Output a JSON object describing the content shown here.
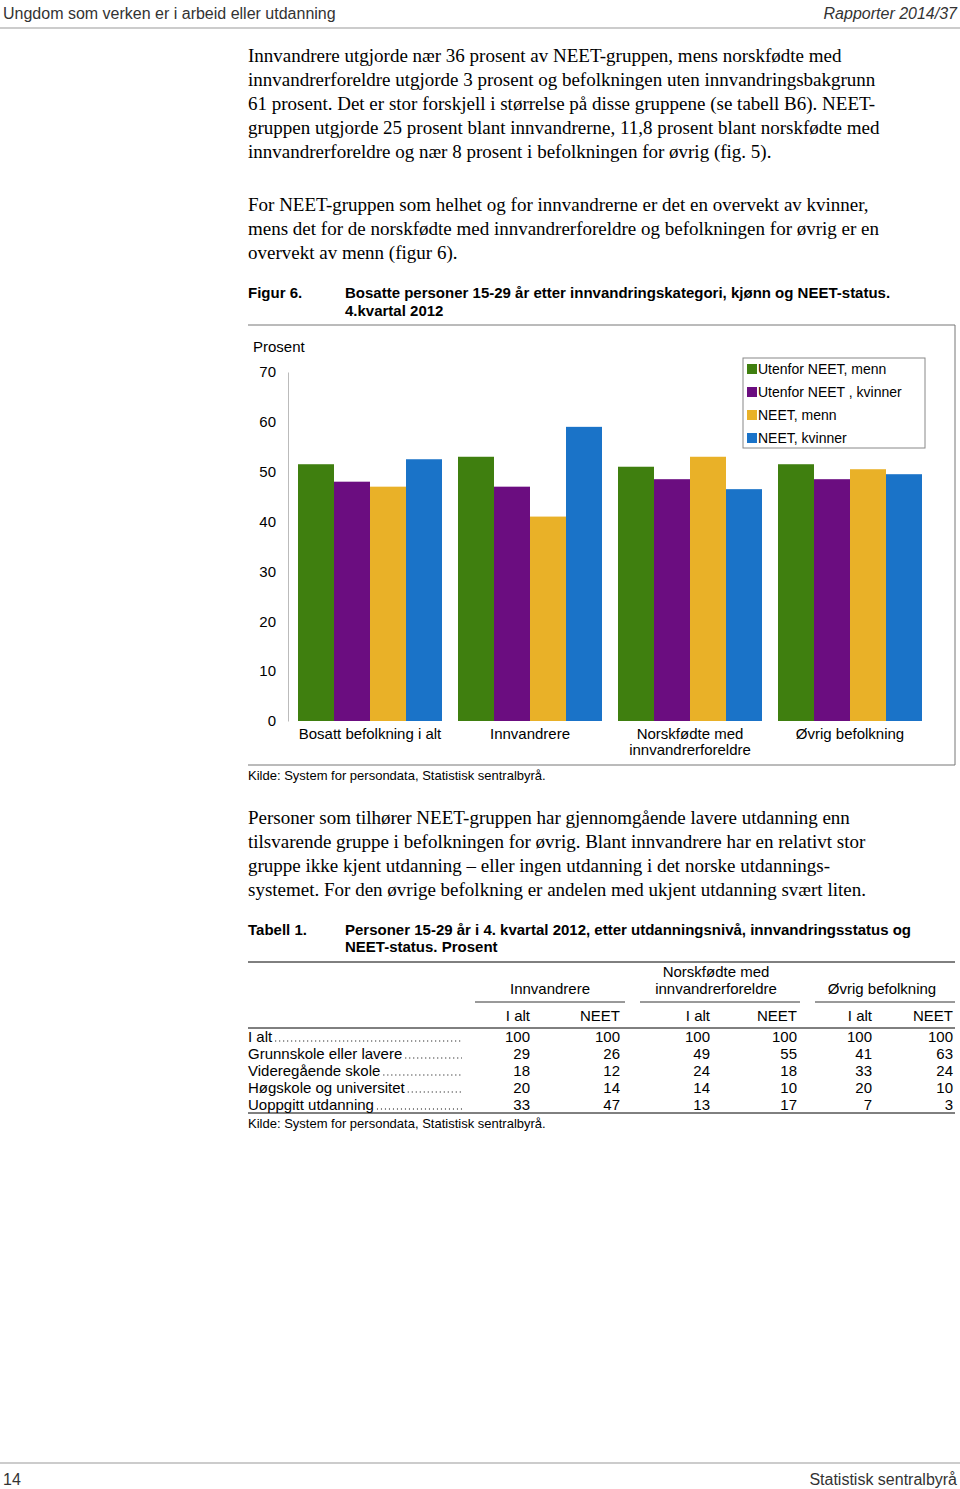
{
  "header": {
    "left": "Ungdom som verken er i arbeid eller utdanning",
    "right": "Rapporter 2014/37"
  },
  "paragraphs": [
    [
      "Innvandrere utgjorde nær 36 prosent av NEET-gruppen, mens norskfødte med",
      "innvandrerforeldre utgjorde 3 prosent og befolkningen uten innvandringsbakgrunn",
      "61 prosent. Det er stor forskjell i størrelse på disse gruppene (se tabell B6). NEET-",
      "gruppen utgjorde 25 prosent blant innvandrerne, 11,8 prosent blant norskfødte med",
      "innvandrerforeldre og nær 8 prosent i befolkningen for øvrig (fig. 5)."
    ],
    [
      "For NEET-gruppen som helhet og for innvandrerne er det en overvekt av kvinner,",
      "mens det for de norskfødte med innvandrerforeldre og befolkningen for øvrig er en",
      "overvekt av menn (figur 6)."
    ]
  ],
  "figure": {
    "label": "Figur 6.",
    "source": "Kilde: System for persondata, Statistisk sentralbyrå."
  },
  "chart_data": {
    "type": "bar",
    "title": "Bosatte personer 15-29 år etter innvandringskategori, kjønn og NEET-status.",
    "subtitle": "4.kvartal 2012",
    "y_label": "Prosent",
    "categories": [
      "Bosatt befolkning i alt",
      "Innvandrere",
      "Norskfødte med innvandrerforeldre",
      "Øvrig befolkning"
    ],
    "series": [
      {
        "name": "Utenfor NEET, menn",
        "color": "#3f7f0f",
        "values": [
          51.5,
          53,
          51,
          51.5
        ]
      },
      {
        "name": "Utenfor NEET , kvinner",
        "color": "#6b0d80",
        "values": [
          48,
          47,
          48.5,
          48.5
        ]
      },
      {
        "name": "NEET, menn",
        "color": "#e9b128",
        "values": [
          47,
          41,
          53,
          50.5
        ]
      },
      {
        "name": "NEET, kvinner",
        "color": "#1a73c8",
        "values": [
          52.5,
          59,
          46.5,
          49.5
        ]
      }
    ],
    "ylim": [
      0,
      70
    ],
    "yticks": [
      0,
      10,
      20,
      30,
      40,
      50,
      60,
      70
    ],
    "grid": false,
    "legend": "upper right"
  },
  "paragraphs_after": [
    [
      "Personer som tilhører NEET-gruppen har gjennomgående lavere utdanning enn",
      "tilsvarende gruppe i befolkningen for øvrig. Blant innvandrere har en relativt stor",
      "gruppe ikke kjent utdanning – eller ingen utdanning i det norske utdannings-",
      "systemet. For den øvrige befolkning er andelen med ukjent utdanning svært liten."
    ]
  ],
  "table": {
    "label": "Tabell 1.",
    "title_lines": [
      "Personer 15-29 år i 4. kvartal 2012, etter utdanningsnivå, innvandringsstatus og",
      "NEET-status. Prosent"
    ],
    "groups": [
      [
        "Innvandrere"
      ],
      [
        "Norskfødte med",
        "innvandrerforeldre"
      ],
      [
        "Øvrig befolkning"
      ]
    ],
    "subheaders": [
      "I alt",
      "NEET",
      "I alt",
      "NEET",
      "I alt",
      "NEET"
    ],
    "rows": [
      [
        "I alt",
        100,
        100,
        100,
        100,
        100,
        100
      ],
      [
        "Grunnskole eller lavere",
        29,
        26,
        49,
        55,
        41,
        63
      ],
      [
        "Videregående skole",
        18,
        12,
        24,
        18,
        33,
        24
      ],
      [
        "Høgskole og universitet",
        20,
        14,
        14,
        10,
        20,
        10
      ],
      [
        "Uoppgitt utdanning",
        33,
        47,
        13,
        17,
        7,
        3
      ]
    ],
    "source": "Kilde: System for persondata, Statistisk sentralbyrå."
  },
  "footer": {
    "page": "14",
    "right": "Statistisk sentralbyrå"
  }
}
